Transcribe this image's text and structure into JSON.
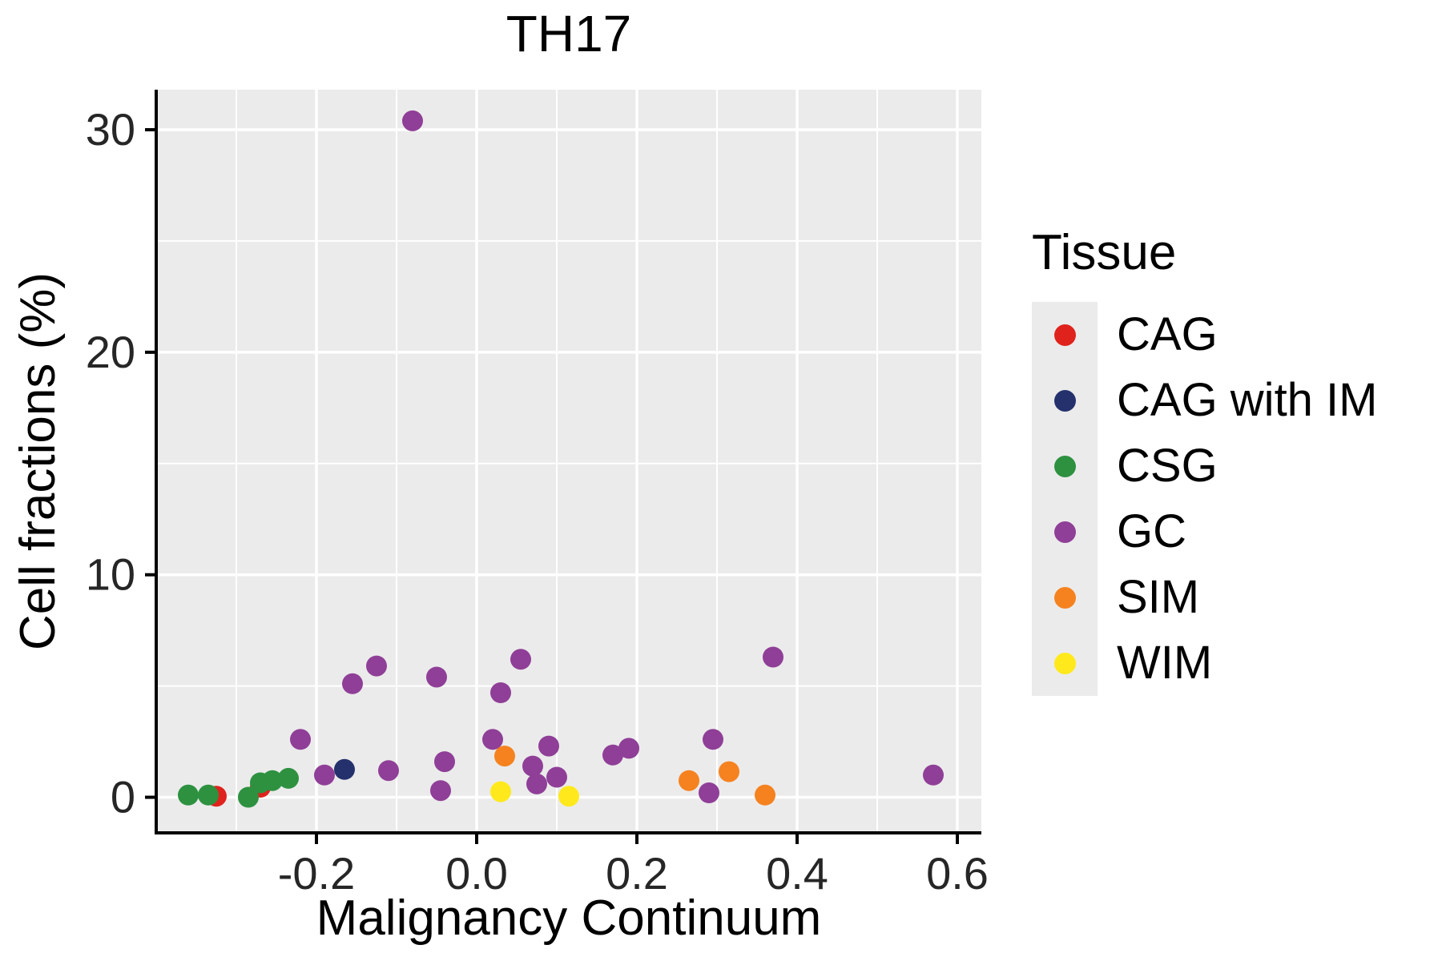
{
  "title": "TH17",
  "xlabel": "Malignancy Continuum",
  "ylabel": "Cell fractions (%)",
  "chart_data": {
    "type": "scatter",
    "title": "TH17",
    "xlabel": "Malignancy Continuum",
    "ylabel": "Cell fractions (%)",
    "legend_title": "Tissue",
    "legend_position": "right",
    "grid": true,
    "xlim": [
      -0.4,
      0.63
    ],
    "ylim": [
      -1.6,
      31.8
    ],
    "x_ticks": [
      -0.2,
      0.0,
      0.2,
      0.4,
      0.6
    ],
    "x_tick_labels": [
      "-0.2",
      "0.0",
      "0.2",
      "0.4",
      "0.6"
    ],
    "x_minor": [
      -0.3,
      -0.1,
      0.1,
      0.3,
      0.5
    ],
    "y_ticks": [
      0,
      10,
      20,
      30
    ],
    "y_tick_labels": [
      "0",
      "10",
      "20",
      "30"
    ],
    "y_minor": [
      5,
      15,
      25
    ],
    "series": [
      {
        "name": "CAG",
        "color": "#E0221C",
        "points": [
          [
            -0.325,
            0.05
          ],
          [
            -0.27,
            0.45
          ]
        ]
      },
      {
        "name": "CAG with IM",
        "color": "#25316D",
        "points": [
          [
            -0.165,
            1.25
          ]
        ]
      },
      {
        "name": "CSG",
        "color": "#2D9140",
        "points": [
          [
            -0.36,
            0.1
          ],
          [
            -0.335,
            0.1
          ],
          [
            -0.285,
            0.0
          ],
          [
            -0.27,
            0.65
          ],
          [
            -0.255,
            0.75
          ],
          [
            -0.235,
            0.85
          ]
        ]
      },
      {
        "name": "GC",
        "color": "#8F3F97",
        "points": [
          [
            -0.08,
            30.4
          ],
          [
            -0.22,
            2.6
          ],
          [
            -0.19,
            1.0
          ],
          [
            -0.155,
            5.1
          ],
          [
            -0.125,
            5.9
          ],
          [
            -0.11,
            1.2
          ],
          [
            -0.05,
            5.4
          ],
          [
            -0.04,
            1.6
          ],
          [
            -0.045,
            0.3
          ],
          [
            0.02,
            2.6
          ],
          [
            0.03,
            4.7
          ],
          [
            0.055,
            6.2
          ],
          [
            0.07,
            1.4
          ],
          [
            0.075,
            0.6
          ],
          [
            0.09,
            2.3
          ],
          [
            0.1,
            0.9
          ],
          [
            0.17,
            1.9
          ],
          [
            0.19,
            2.2
          ],
          [
            0.295,
            2.6
          ],
          [
            0.29,
            0.2
          ],
          [
            0.37,
            6.3
          ],
          [
            0.57,
            1.0
          ]
        ]
      },
      {
        "name": "SIM",
        "color": "#F5821F",
        "points": [
          [
            0.035,
            1.85
          ],
          [
            0.265,
            0.75
          ],
          [
            0.315,
            1.15
          ],
          [
            0.36,
            0.1
          ]
        ]
      },
      {
        "name": "WIM",
        "color": "#FFE91C",
        "points": [
          [
            0.03,
            0.25
          ],
          [
            0.115,
            0.05
          ]
        ]
      }
    ]
  }
}
